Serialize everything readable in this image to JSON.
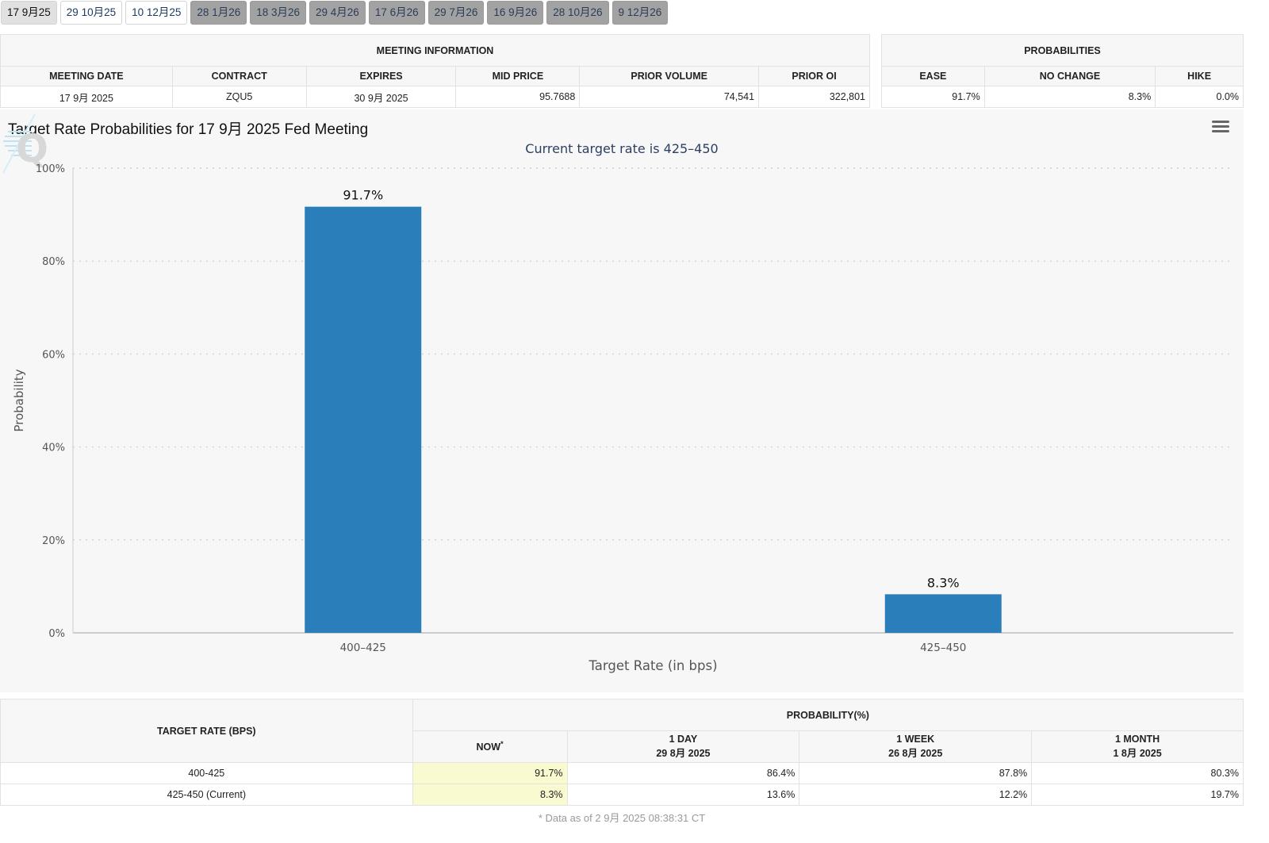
{
  "tabs": [
    {
      "label": "17 9月25",
      "state": "active"
    },
    {
      "label": "29 10月25",
      "state": "near"
    },
    {
      "label": "10 12月25",
      "state": "near"
    },
    {
      "label": "28 1月26",
      "state": "far"
    },
    {
      "label": "18 3月26",
      "state": "far"
    },
    {
      "label": "29 4月26",
      "state": "far"
    },
    {
      "label": "17 6月26",
      "state": "far"
    },
    {
      "label": "29 7月26",
      "state": "far"
    },
    {
      "label": "16 9月26",
      "state": "far"
    },
    {
      "label": "28 10月26",
      "state": "far"
    },
    {
      "label": "9 12月26",
      "state": "far"
    }
  ],
  "meeting_info": {
    "heading": "MEETING INFORMATION",
    "headers": [
      "MEETING DATE",
      "CONTRACT",
      "EXPIRES",
      "MID PRICE",
      "PRIOR VOLUME",
      "PRIOR OI"
    ],
    "row": [
      "17 9月 2025",
      "ZQU5",
      "30 9月 2025",
      "95.7688",
      "74,541",
      "322,801"
    ]
  },
  "probabilities": {
    "heading": "PROBABILITIES",
    "headers": [
      "EASE",
      "NO CHANGE",
      "HIKE"
    ],
    "row": [
      "91.7%",
      "8.3%",
      "0.0%"
    ]
  },
  "chart": {
    "title": "Target Rate Probabilities for 17 9月 2025 Fed Meeting",
    "subtitle": "Current target rate is 425–450"
  },
  "chart_data": {
    "type": "bar",
    "categories": [
      "400–425",
      "425–450"
    ],
    "values": [
      91.7,
      8.3
    ],
    "data_labels": [
      "91.7%",
      "8.3%"
    ],
    "xlabel": "Target Rate (in bps)",
    "ylabel": "Probability",
    "ylim": [
      0,
      100
    ],
    "yticks": [
      "0%",
      "20%",
      "40%",
      "60%",
      "80%",
      "100%"
    ],
    "ytick_values": [
      0,
      20,
      40,
      60,
      80,
      100
    ],
    "grid": true,
    "bar_color": "#2a7fba"
  },
  "prob_table": {
    "rate_header": "TARGET RATE (BPS)",
    "prob_header": "PROBABILITY(%)",
    "columns": [
      {
        "line1": "NOW",
        "sup": "*",
        "line2": ""
      },
      {
        "line1": "1 DAY",
        "sup": "",
        "line2": "29 8月 2025"
      },
      {
        "line1": "1 WEEK",
        "sup": "",
        "line2": "26 8月 2025"
      },
      {
        "line1": "1 MONTH",
        "sup": "",
        "line2": "1 8月 2025"
      }
    ],
    "rows": [
      {
        "rate": "400-425",
        "values": [
          "91.7%",
          "86.4%",
          "87.8%",
          "80.3%"
        ]
      },
      {
        "rate": "425-450 (Current)",
        "values": [
          "8.3%",
          "13.6%",
          "12.2%",
          "19.7%"
        ]
      }
    ],
    "footnote": "* Data as of 2 9月 2025 08:38:31 CT"
  }
}
